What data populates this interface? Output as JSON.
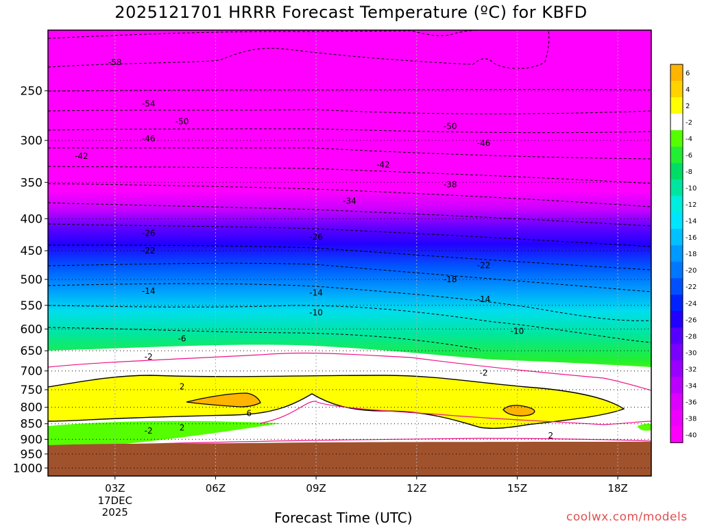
{
  "title": "2025121701 HRRR Forecast Temperature (ºC) for KBFD",
  "credit": "coolwx.com/models",
  "chart_data": {
    "type": "heatmap",
    "title": "2025121701 HRRR Forecast Temperature (ºC) for KBFD",
    "xlabel": "Forecast Time (UTC)",
    "ylabel": "",
    "x_ticks": [
      {
        "hour": 3,
        "label": "03Z",
        "sub": [
          "17DEC",
          "2025"
        ]
      },
      {
        "hour": 6,
        "label": "06Z",
        "sub": []
      },
      {
        "hour": 9,
        "label": "09Z",
        "sub": []
      },
      {
        "hour": 12,
        "label": "12Z",
        "sub": []
      },
      {
        "hour": 15,
        "label": "15Z",
        "sub": []
      },
      {
        "hour": 18,
        "label": "18Z",
        "sub": []
      }
    ],
    "xlim_hours": [
      1,
      19
    ],
    "y_ticks": [
      250,
      300,
      350,
      400,
      450,
      500,
      550,
      600,
      650,
      700,
      750,
      800,
      850,
      900,
      950,
      1000
    ],
    "y_axis": "pressure (hPa), log scale, inverted",
    "ylim": [
      200,
      1030
    ],
    "grid": true,
    "colorbar": {
      "labels": [
        "6",
        "4",
        "2",
        "-2",
        "-4",
        "-6",
        "-8",
        "-10",
        "-12",
        "-14",
        "-16",
        "-18",
        "-20",
        "-22",
        "-24",
        "-26",
        "-28",
        "-30",
        "-32",
        "-34",
        "-36",
        "-38",
        "-40"
      ],
      "colors": [
        "#ffb400",
        "#ffd200",
        "#ffff00",
        "#ffffff",
        "#55ff00",
        "#22ee33",
        "#00dd66",
        "#00e6a0",
        "#00eedd",
        "#00e5ff",
        "#00c0ff",
        "#0099ff",
        "#0077ff",
        "#0050ff",
        "#0022ff",
        "#2200ff",
        "#5500ff",
        "#7a00ff",
        "#9900ff",
        "#bb00ff",
        "#dd00ff",
        "#ee00ff",
        "#ff00ff"
      ]
    },
    "contours": [
      {
        "value": -58,
        "label": "-58",
        "at_hour": 3,
        "pressure": 225
      },
      {
        "value": -54,
        "label": "-54",
        "at_hour": 4,
        "pressure": 262
      },
      {
        "value": -50,
        "label": "-50",
        "at_hour": 5,
        "pressure": 280
      },
      {
        "value": -50,
        "label": "-50",
        "at_hour": 13,
        "pressure": 285
      },
      {
        "value": -46,
        "label": "-46",
        "at_hour": 4,
        "pressure": 298
      },
      {
        "value": -46,
        "label": "-46",
        "at_hour": 14,
        "pressure": 303
      },
      {
        "value": -42,
        "label": "-42",
        "at_hour": 2,
        "pressure": 318
      },
      {
        "value": -42,
        "label": "-42",
        "at_hour": 11,
        "pressure": 328
      },
      {
        "value": -38,
        "label": "-38",
        "at_hour": 13,
        "pressure": 353
      },
      {
        "value": -34,
        "label": "-34",
        "at_hour": 10,
        "pressure": 375
      },
      {
        "value": -26,
        "label": "-26",
        "at_hour": 4,
        "pressure": 422
      },
      {
        "value": -26,
        "label": "-26",
        "at_hour": 9,
        "pressure": 428
      },
      {
        "value": -22,
        "label": "-22",
        "at_hour": 4,
        "pressure": 450
      },
      {
        "value": -22,
        "label": "-22",
        "at_hour": 14,
        "pressure": 475
      },
      {
        "value": -18,
        "label": "-18",
        "at_hour": 13,
        "pressure": 500
      },
      {
        "value": -14,
        "label": "-14",
        "at_hour": 4,
        "pressure": 522
      },
      {
        "value": -14,
        "label": "-14",
        "at_hour": 9,
        "pressure": 525
      },
      {
        "value": -14,
        "label": "-14",
        "at_hour": 14,
        "pressure": 538
      },
      {
        "value": -10,
        "label": "-10",
        "at_hour": 9,
        "pressure": 565
      },
      {
        "value": -10,
        "label": "-10",
        "at_hour": 15,
        "pressure": 605
      },
      {
        "value": -6,
        "label": "-6",
        "at_hour": 5,
        "pressure": 622
      },
      {
        "value": -2,
        "label": "-2",
        "at_hour": 4,
        "pressure": 665
      },
      {
        "value": -2,
        "label": "-2",
        "at_hour": 14,
        "pressure": 705
      },
      {
        "value": 2,
        "label": "2",
        "at_hour": 5,
        "pressure": 742
      },
      {
        "value": 6,
        "label": "6",
        "at_hour": 7,
        "pressure": 818
      },
      {
        "value": -2,
        "label": "-2",
        "at_hour": 4,
        "pressure": 872
      },
      {
        "value": 2,
        "label": "2",
        "at_hour": 5,
        "pressure": 862
      },
      {
        "value": 2,
        "label": "2",
        "at_hour": 16,
        "pressure": 888
      }
    ]
  }
}
